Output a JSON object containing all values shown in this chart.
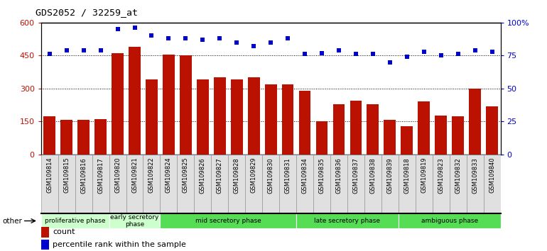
{
  "title": "GDS2052 / 32259_at",
  "samples": [
    "GSM109814",
    "GSM109815",
    "GSM109816",
    "GSM109817",
    "GSM109820",
    "GSM109821",
    "GSM109822",
    "GSM109824",
    "GSM109825",
    "GSM109826",
    "GSM109827",
    "GSM109828",
    "GSM109829",
    "GSM109830",
    "GSM109831",
    "GSM109834",
    "GSM109835",
    "GSM109836",
    "GSM109837",
    "GSM109838",
    "GSM109839",
    "GSM109818",
    "GSM109819",
    "GSM109823",
    "GSM109832",
    "GSM109833",
    "GSM109840"
  ],
  "counts": [
    175,
    158,
    158,
    162,
    460,
    490,
    340,
    455,
    452,
    340,
    350,
    340,
    350,
    318,
    318,
    290,
    152,
    228,
    245,
    228,
    158,
    128,
    242,
    178,
    172,
    298,
    218
  ],
  "percentiles": [
    76,
    79,
    79,
    79,
    95,
    96,
    90,
    88,
    88,
    87,
    88,
    85,
    82,
    85,
    88,
    76,
    77,
    79,
    76,
    76,
    70,
    74,
    78,
    75,
    76,
    79,
    78
  ],
  "bar_color": "#bb1100",
  "dot_color": "#0000cc",
  "left_ylim": [
    0,
    600
  ],
  "right_ylim": [
    0,
    100
  ],
  "left_yticks": [
    0,
    150,
    300,
    450,
    600
  ],
  "right_yticks": [
    0,
    25,
    50,
    75,
    100
  ],
  "right_yticklabels": [
    "0",
    "25",
    "50",
    "75",
    "100%"
  ],
  "grid_vals": [
    150,
    300,
    450
  ],
  "phase_data": [
    {
      "label": "proliferative phase",
      "start": 0,
      "end": 4,
      "color": "#ccffcc"
    },
    {
      "label": "early secretory\nphase",
      "start": 4,
      "end": 7,
      "color": "#ccffcc"
    },
    {
      "label": "mid secretory phase",
      "start": 7,
      "end": 15,
      "color": "#55dd55"
    },
    {
      "label": "late secretory phase",
      "start": 15,
      "end": 21,
      "color": "#55dd55"
    },
    {
      "label": "ambiguous phase",
      "start": 21,
      "end": 27,
      "color": "#55dd55"
    }
  ],
  "other_label": "other",
  "legend_count": "count",
  "legend_percentile": "percentile rank within the sample",
  "tick_bg_color": "#dddddd"
}
